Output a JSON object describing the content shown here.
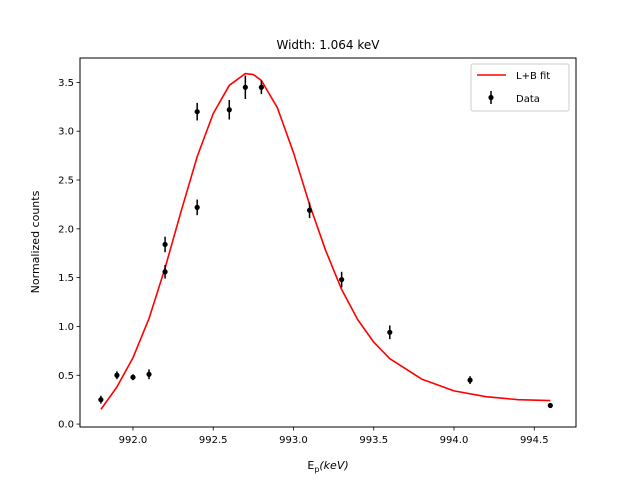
{
  "chart_data": {
    "type": "scatter",
    "title": "Width: 1.064 keV",
    "xlabel": {
      "base": "E",
      "sub": "p",
      "rest": "(keV)"
    },
    "ylabel": "Normalized counts",
    "xlim": [
      991.67,
      994.76
    ],
    "ylim": [
      -0.03,
      3.75
    ],
    "x_ticks": [
      "992.0",
      "992.5",
      "993.0",
      "993.5",
      "994.0",
      "994.5"
    ],
    "y_ticks": [
      "0.0",
      "0.5",
      "1.0",
      "1.5",
      "2.0",
      "2.5",
      "3.0",
      "3.5"
    ],
    "legend": {
      "placement": "top-right",
      "entries": [
        "L+B fit",
        "Data"
      ]
    },
    "grid": false,
    "series": [
      {
        "name": "Data",
        "kind": "points-with-errorbars",
        "color": "#000000",
        "points": [
          {
            "x": 991.8,
            "y": 0.25,
            "err": 0.04
          },
          {
            "x": 991.9,
            "y": 0.5,
            "err": 0.04
          },
          {
            "x": 992.0,
            "y": 0.48,
            "err": 0.03
          },
          {
            "x": 992.1,
            "y": 0.51,
            "err": 0.05
          },
          {
            "x": 992.2,
            "y": 1.56,
            "err": 0.07
          },
          {
            "x": 992.2,
            "y": 1.84,
            "err": 0.08
          },
          {
            "x": 992.4,
            "y": 2.22,
            "err": 0.08
          },
          {
            "x": 992.4,
            "y": 3.2,
            "err": 0.09
          },
          {
            "x": 992.6,
            "y": 3.22,
            "err": 0.1
          },
          {
            "x": 992.7,
            "y": 3.45,
            "err": 0.12
          },
          {
            "x": 992.8,
            "y": 3.45,
            "err": 0.07
          },
          {
            "x": 993.1,
            "y": 2.19,
            "err": 0.08
          },
          {
            "x": 993.3,
            "y": 1.48,
            "err": 0.08
          },
          {
            "x": 993.6,
            "y": 0.94,
            "err": 0.07
          },
          {
            "x": 994.1,
            "y": 0.45,
            "err": 0.04
          },
          {
            "x": 994.6,
            "y": 0.19,
            "err": 0.02
          }
        ]
      },
      {
        "name": "L+B fit",
        "kind": "line",
        "color": "#ff0000",
        "x": [
          991.8,
          991.9,
          992.0,
          992.1,
          992.2,
          992.3,
          992.4,
          992.5,
          992.6,
          992.7,
          992.75,
          992.8,
          992.9,
          993.0,
          993.1,
          993.2,
          993.3,
          993.4,
          993.5,
          993.6,
          993.8,
          994.0,
          994.2,
          994.4,
          994.6
        ],
        "y": [
          0.15,
          0.38,
          0.68,
          1.08,
          1.6,
          2.18,
          2.74,
          3.18,
          3.47,
          3.59,
          3.58,
          3.52,
          3.24,
          2.78,
          2.25,
          1.78,
          1.38,
          1.07,
          0.84,
          0.67,
          0.46,
          0.34,
          0.28,
          0.25,
          0.24
        ]
      }
    ]
  }
}
